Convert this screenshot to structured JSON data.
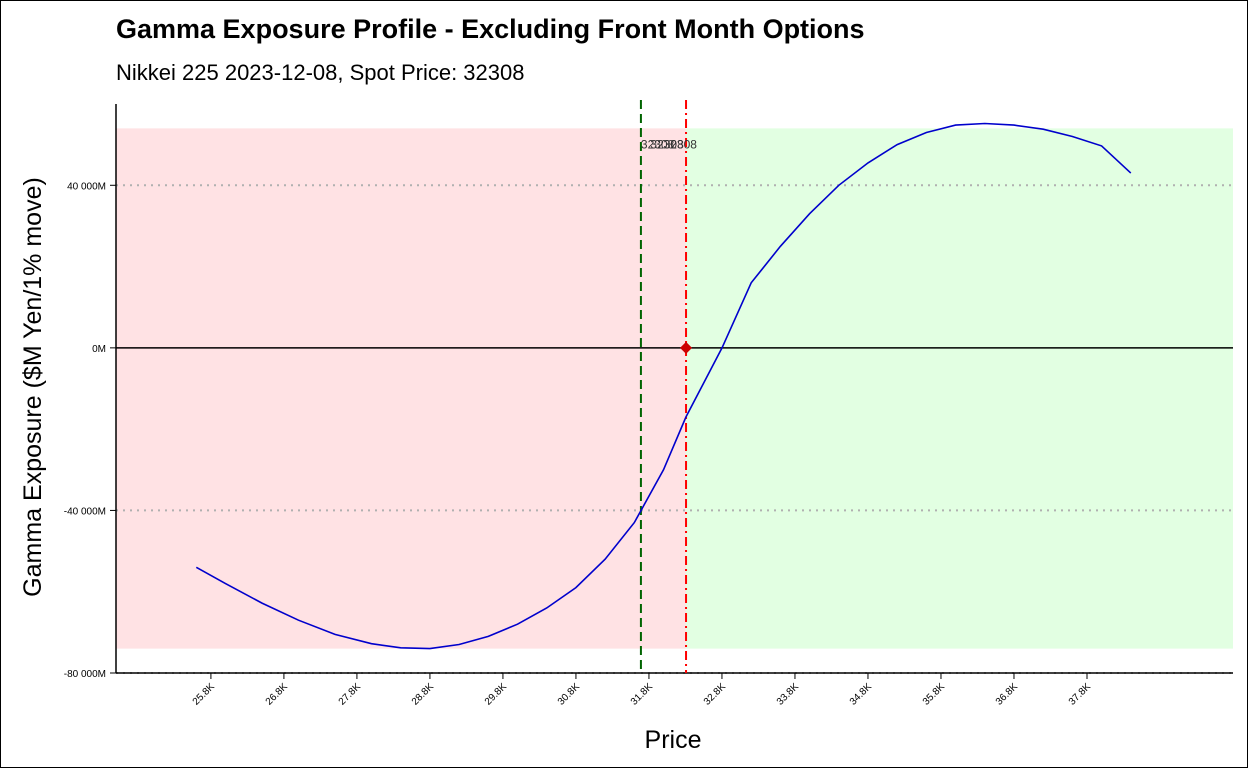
{
  "chart_data": {
    "type": "line",
    "title": "Gamma Exposure Profile - Excluding Front Month Options",
    "subtitle": "Nikkei 225 2023-12-08, Spot Price: 32308",
    "xlabel": "Price",
    "ylabel": "Gamma Exposure ($M Yen/1% move)",
    "xlim": [
      24500,
      39800
    ],
    "ylim": [
      -80000,
      60000
    ],
    "x_ticks": [
      25800,
      26800,
      27800,
      28800,
      29800,
      30800,
      31800,
      32800,
      33800,
      34800,
      35800,
      36800,
      37800
    ],
    "x_tick_labels": [
      "25.8K",
      "26.8K",
      "27.8K",
      "28.8K",
      "29.8K",
      "30.8K",
      "31.8K",
      "32.8K",
      "33.8K",
      "34.8K",
      "35.8K",
      "36.8K",
      "37.8K"
    ],
    "y_ticks": [
      -80000,
      -40000,
      0,
      40000
    ],
    "y_tick_labels": [
      "-80 000M",
      "-40 000M",
      "0M",
      "40 000M"
    ],
    "grid": "dotted horizontal at y ticks",
    "negative_gamma_region": {
      "x": [
        24500,
        32308
      ],
      "y": [
        -74000,
        54000
      ],
      "color": "#ffe2e4"
    },
    "positive_gamma_region": {
      "x": [
        32308,
        39800
      ],
      "y": [
        -74000,
        54000
      ],
      "color": "#e2ffe2"
    },
    "zero_line": {
      "y": 0,
      "color": "#000000"
    },
    "flip_line": {
      "x": 31690,
      "color": "#006400",
      "style": "dashed"
    },
    "spot_line": {
      "x": 32308,
      "color": "#ff0000",
      "style": "dashdot"
    },
    "spot_marker": {
      "x": 32308,
      "y": 0,
      "color": "#cc0000"
    },
    "annotations": [
      {
        "x": 31690,
        "y": 50000,
        "text": "32308"
      },
      {
        "x": 31820,
        "y": 50000,
        "text": "32308"
      },
      {
        "x": 32000,
        "y": 50000,
        "text": "32308"
      }
    ],
    "series": [
      {
        "color": "#0000cc",
        "x": [
          25600,
          26000,
          26500,
          27000,
          27500,
          28000,
          28400,
          28800,
          29200,
          29600,
          30000,
          30400,
          30800,
          31200,
          31600,
          32000,
          32308,
          32800,
          33200,
          33600,
          34000,
          34400,
          34800,
          35200,
          35600,
          36000,
          36400,
          36800,
          37200,
          37600,
          38000,
          38400
        ],
        "y": [
          -54000,
          -58000,
          -62800,
          -67000,
          -70500,
          -72800,
          -73800,
          -74000,
          -73000,
          -71000,
          -68000,
          -64000,
          -59000,
          -52000,
          -43000,
          -30000,
          -17000,
          0,
          16000,
          25000,
          33000,
          40000,
          45500,
          50000,
          53000,
          54800,
          55200,
          54800,
          53800,
          52000,
          49700,
          43000
        ]
      }
    ]
  }
}
